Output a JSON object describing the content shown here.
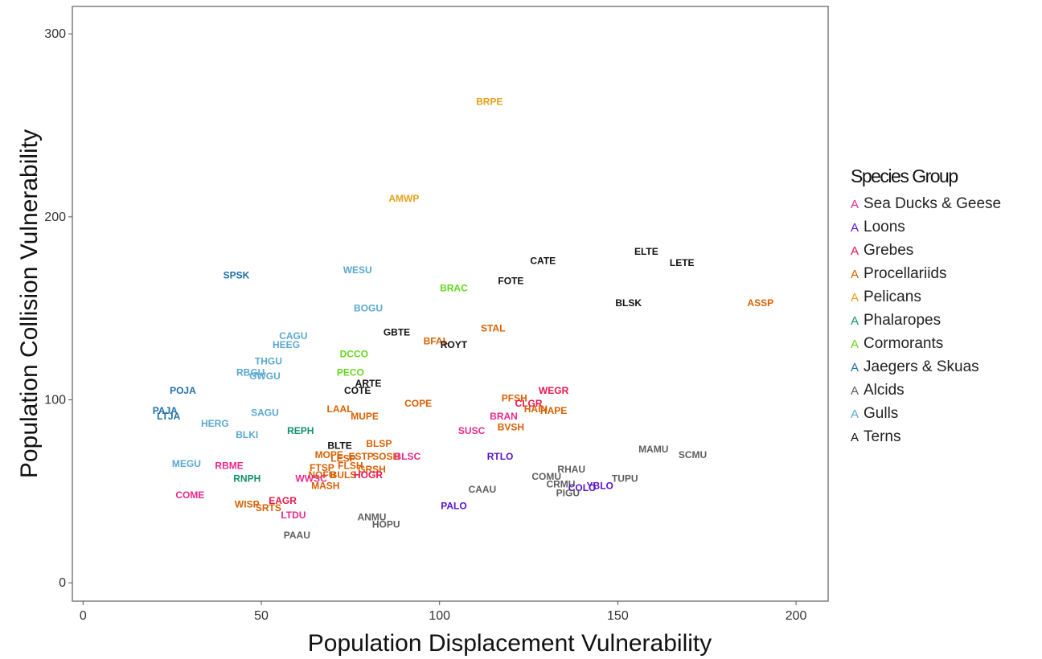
{
  "chart_data": {
    "type": "scatter",
    "xlabel": "Population Displacement Vulnerability",
    "ylabel": "Population Collision Vulnerability",
    "xlim": [
      -3,
      209
    ],
    "ylim": [
      -10,
      315
    ],
    "xticks": [
      0,
      50,
      100,
      150,
      200
    ],
    "yticks": [
      0,
      100,
      200,
      300
    ],
    "grid": false,
    "legend_title": "Species Group",
    "legend_position": "right",
    "groups": [
      {
        "name": "Sea Ducks & Geese",
        "color": "#e7298a"
      },
      {
        "name": "Loons",
        "color": "#5b12c9"
      },
      {
        "name": "Grebes",
        "color": "#e8154b"
      },
      {
        "name": "Procellariids",
        "color": "#d95f02"
      },
      {
        "name": "Pelicans",
        "color": "#e6a117"
      },
      {
        "name": "Phalaropes",
        "color": "#11906a"
      },
      {
        "name": "Cormorants",
        "color": "#66d61e"
      },
      {
        "name": "Jaegers & Skuas",
        "color": "#1f6fa8"
      },
      {
        "name": "Alcids",
        "color": "#5e5e5e"
      },
      {
        "name": "Gulls",
        "color": "#5aa8d0"
      },
      {
        "name": "Terns",
        "color": "#111111"
      }
    ],
    "points": [
      {
        "label": "BRPE",
        "x": 114,
        "y": 263,
        "group": "Pelicans"
      },
      {
        "label": "AMWP",
        "x": 90,
        "y": 210,
        "group": "Pelicans"
      },
      {
        "label": "ELTE",
        "x": 158,
        "y": 181,
        "group": "Terns"
      },
      {
        "label": "LETE",
        "x": 168,
        "y": 175,
        "group": "Terns"
      },
      {
        "label": "CATE",
        "x": 129,
        "y": 176,
        "group": "Terns"
      },
      {
        "label": "FOTE",
        "x": 120,
        "y": 165,
        "group": "Terns"
      },
      {
        "label": "BLSK",
        "x": 153,
        "y": 153,
        "group": "Terns"
      },
      {
        "label": "ASSP",
        "x": 190,
        "y": 153,
        "group": "Procellariids"
      },
      {
        "label": "SPSK",
        "x": 43,
        "y": 168,
        "group": "Jaegers & Skuas"
      },
      {
        "label": "WESU",
        "x": 77,
        "y": 171,
        "group": "Gulls"
      },
      {
        "label": "BRAC",
        "x": 104,
        "y": 161,
        "group": "Cormorants"
      },
      {
        "label": "BOGU",
        "x": 80,
        "y": 150,
        "group": "Gulls"
      },
      {
        "label": "STAL",
        "x": 115,
        "y": 139,
        "group": "Procellariids"
      },
      {
        "label": "GBTE",
        "x": 88,
        "y": 137,
        "group": "Terns"
      },
      {
        "label": "BFAL",
        "x": 99,
        "y": 132,
        "group": "Procellariids"
      },
      {
        "label": "ROYT",
        "x": 104,
        "y": 130,
        "group": "Terns"
      },
      {
        "label": "CAGU",
        "x": 59,
        "y": 135,
        "group": "Gulls"
      },
      {
        "label": "HEEG",
        "x": 57,
        "y": 130,
        "group": "Gulls"
      },
      {
        "label": "DCCO",
        "x": 76,
        "y": 125,
        "group": "Cormorants"
      },
      {
        "label": "THGU",
        "x": 52,
        "y": 121,
        "group": "Gulls"
      },
      {
        "label": "PECO",
        "x": 75,
        "y": 115,
        "group": "Cormorants"
      },
      {
        "label": "RBGU",
        "x": 47,
        "y": 115,
        "group": "Gulls"
      },
      {
        "label": "GWGU",
        "x": 51,
        "y": 113,
        "group": "Gulls"
      },
      {
        "label": "ARTE",
        "x": 80,
        "y": 109,
        "group": "Terns"
      },
      {
        "label": "COTE",
        "x": 77,
        "y": 105,
        "group": "Terns"
      },
      {
        "label": "POJA",
        "x": 28,
        "y": 105,
        "group": "Jaegers & Skuas"
      },
      {
        "label": "WEGR",
        "x": 132,
        "y": 105,
        "group": "Grebes"
      },
      {
        "label": "PFSH",
        "x": 121,
        "y": 101,
        "group": "Procellariids"
      },
      {
        "label": "CLGR",
        "x": 125,
        "y": 98,
        "group": "Grebes"
      },
      {
        "label": "COPE",
        "x": 94,
        "y": 98,
        "group": "Procellariids"
      },
      {
        "label": "HAPE",
        "x": 132,
        "y": 94,
        "group": "Procellariids"
      },
      {
        "label": "HAIN",
        "x": 127,
        "y": 95,
        "group": "Procellariids"
      },
      {
        "label": "LAAL",
        "x": 72,
        "y": 95,
        "group": "Procellariids"
      },
      {
        "label": "PAJA",
        "x": 23,
        "y": 94,
        "group": "Jaegers & Skuas"
      },
      {
        "label": "LTJA",
        "x": 24,
        "y": 91,
        "group": "Jaegers & Skuas"
      },
      {
        "label": "SAGU",
        "x": 51,
        "y": 93,
        "group": "Gulls"
      },
      {
        "label": "MUPE",
        "x": 79,
        "y": 91,
        "group": "Procellariids"
      },
      {
        "label": "BRAN",
        "x": 118,
        "y": 91,
        "group": "Sea Ducks & Geese"
      },
      {
        "label": "HERG",
        "x": 37,
        "y": 87,
        "group": "Gulls"
      },
      {
        "label": "BVSH",
        "x": 120,
        "y": 85,
        "group": "Procellariids"
      },
      {
        "label": "SUSC",
        "x": 109,
        "y": 83,
        "group": "Sea Ducks & Geese"
      },
      {
        "label": "REPH",
        "x": 61,
        "y": 83,
        "group": "Phalaropes"
      },
      {
        "label": "BLKI",
        "x": 46,
        "y": 81,
        "group": "Gulls"
      },
      {
        "label": "BLSP",
        "x": 83,
        "y": 76,
        "group": "Procellariids"
      },
      {
        "label": "BLTE",
        "x": 72,
        "y": 75,
        "group": "Terns"
      },
      {
        "label": "MAMU",
        "x": 160,
        "y": 73,
        "group": "Alcids"
      },
      {
        "label": "SCMU",
        "x": 171,
        "y": 70,
        "group": "Alcids"
      },
      {
        "label": "MOPE",
        "x": 69,
        "y": 70,
        "group": "Procellariids"
      },
      {
        "label": "LESP",
        "x": 73,
        "y": 68,
        "group": "Procellariids"
      },
      {
        "label": "ESTP",
        "x": 78,
        "y": 69,
        "group": "Procellariids"
      },
      {
        "label": "SOSH",
        "x": 85,
        "y": 69,
        "group": "Procellariids"
      },
      {
        "label": "BLSC",
        "x": 91,
        "y": 69,
        "group": "Sea Ducks & Geese"
      },
      {
        "label": "RTLO",
        "x": 117,
        "y": 69,
        "group": "Loons"
      },
      {
        "label": "MEGU",
        "x": 29,
        "y": 65,
        "group": "Gulls"
      },
      {
        "label": "RBME",
        "x": 41,
        "y": 64,
        "group": "Sea Ducks & Geese"
      },
      {
        "label": "FTSP",
        "x": 67,
        "y": 63,
        "group": "Procellariids"
      },
      {
        "label": "FLSH",
        "x": 75,
        "y": 64,
        "group": "Procellariids"
      },
      {
        "label": "GRSH",
        "x": 81,
        "y": 62,
        "group": "Procellariids"
      },
      {
        "label": "RHAU",
        "x": 137,
        "y": 62,
        "group": "Alcids"
      },
      {
        "label": "NOFU",
        "x": 67,
        "y": 59,
        "group": "Procellariids"
      },
      {
        "label": "BULS",
        "x": 73,
        "y": 59,
        "group": "Procellariids"
      },
      {
        "label": "HOGR",
        "x": 80,
        "y": 59,
        "group": "Grebes"
      },
      {
        "label": "COMU",
        "x": 130,
        "y": 58,
        "group": "Alcids"
      },
      {
        "label": "RNPH",
        "x": 46,
        "y": 57,
        "group": "Phalaropes"
      },
      {
        "label": "WWSC",
        "x": 64,
        "y": 57,
        "group": "Sea Ducks & Geese"
      },
      {
        "label": "TUPU",
        "x": 152,
        "y": 57,
        "group": "Alcids"
      },
      {
        "label": "CRMU",
        "x": 134,
        "y": 54,
        "group": "Alcids"
      },
      {
        "label": "YBLO",
        "x": 145,
        "y": 53,
        "group": "Loons"
      },
      {
        "label": "COLO",
        "x": 140,
        "y": 52,
        "group": "Loons"
      },
      {
        "label": "MASH",
        "x": 68,
        "y": 53,
        "group": "Procellariids"
      },
      {
        "label": "CAAU",
        "x": 112,
        "y": 51,
        "group": "Alcids"
      },
      {
        "label": "PIGU",
        "x": 136,
        "y": 49,
        "group": "Alcids"
      },
      {
        "label": "COME",
        "x": 30,
        "y": 48,
        "group": "Sea Ducks & Geese"
      },
      {
        "label": "EAGR",
        "x": 56,
        "y": 45,
        "group": "Grebes"
      },
      {
        "label": "WISP",
        "x": 46,
        "y": 43,
        "group": "Procellariids"
      },
      {
        "label": "SRTS",
        "x": 52,
        "y": 41,
        "group": "Procellariids"
      },
      {
        "label": "PALO",
        "x": 104,
        "y": 42,
        "group": "Loons"
      },
      {
        "label": "LTDU",
        "x": 59,
        "y": 37,
        "group": "Sea Ducks & Geese"
      },
      {
        "label": "ANMU",
        "x": 81,
        "y": 36,
        "group": "Alcids"
      },
      {
        "label": "HOPU",
        "x": 85,
        "y": 32,
        "group": "Alcids"
      },
      {
        "label": "PAAU",
        "x": 60,
        "y": 26,
        "group": "Alcids"
      }
    ]
  }
}
